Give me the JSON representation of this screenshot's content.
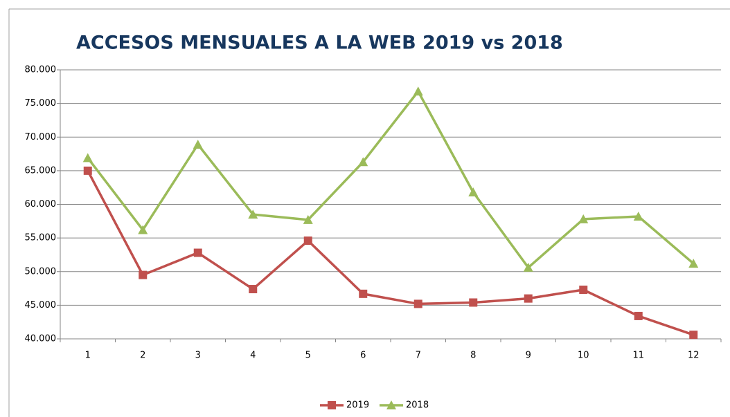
{
  "chart_data": {
    "type": "line",
    "title": "ACCESOS MENSUALES A LA WEB 2019 vs 2018",
    "categories": [
      "1",
      "2",
      "3",
      "4",
      "5",
      "6",
      "7",
      "8",
      "9",
      "10",
      "11",
      "12"
    ],
    "series": [
      {
        "name": "2019",
        "color": "#c0504d",
        "marker": "square",
        "values": [
          65000,
          49500,
          52800,
          47400,
          54600,
          46700,
          45200,
          45400,
          46000,
          47300,
          43400,
          40600
        ]
      },
      {
        "name": "2018",
        "color": "#9bbb59",
        "marker": "triangle",
        "values": [
          66900,
          56200,
          68900,
          58500,
          57700,
          66300,
          76800,
          61800,
          50600,
          57800,
          58200,
          51200
        ]
      }
    ],
    "ylim": [
      40000,
      80000
    ],
    "yticks": [
      {
        "value": 40000,
        "label": "40.000"
      },
      {
        "value": 45000,
        "label": "45.000"
      },
      {
        "value": 50000,
        "label": "50.000"
      },
      {
        "value": 55000,
        "label": "55.000"
      },
      {
        "value": 60000,
        "label": "60.000"
      },
      {
        "value": 65000,
        "label": "65.000"
      },
      {
        "value": 70000,
        "label": "70.000"
      },
      {
        "value": 75000,
        "label": "75.000"
      },
      {
        "value": 80000,
        "label": "80.000"
      }
    ],
    "grid": true,
    "legend": "bottom"
  }
}
